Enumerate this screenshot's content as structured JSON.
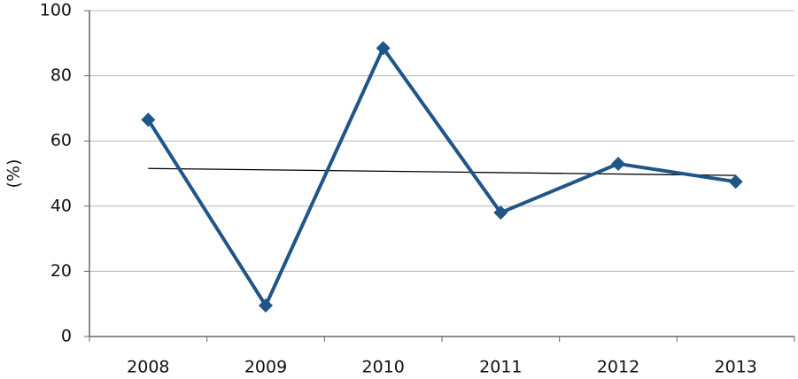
{
  "chart_data": {
    "type": "line",
    "y_label": "(%)",
    "categories": [
      "2008",
      "2009",
      "2010",
      "2011",
      "2012",
      "2013"
    ],
    "series": [
      {
        "color": "#1f5587",
        "values": [
          66.5,
          9.5,
          88.5,
          38,
          53,
          47.5
        ]
      }
    ],
    "trendline": "linear",
    "trendline_color": "#000000",
    "ylim": [
      0,
      100
    ],
    "yticks": [
      0,
      20,
      40,
      60,
      80,
      100
    ],
    "grid": true
  }
}
